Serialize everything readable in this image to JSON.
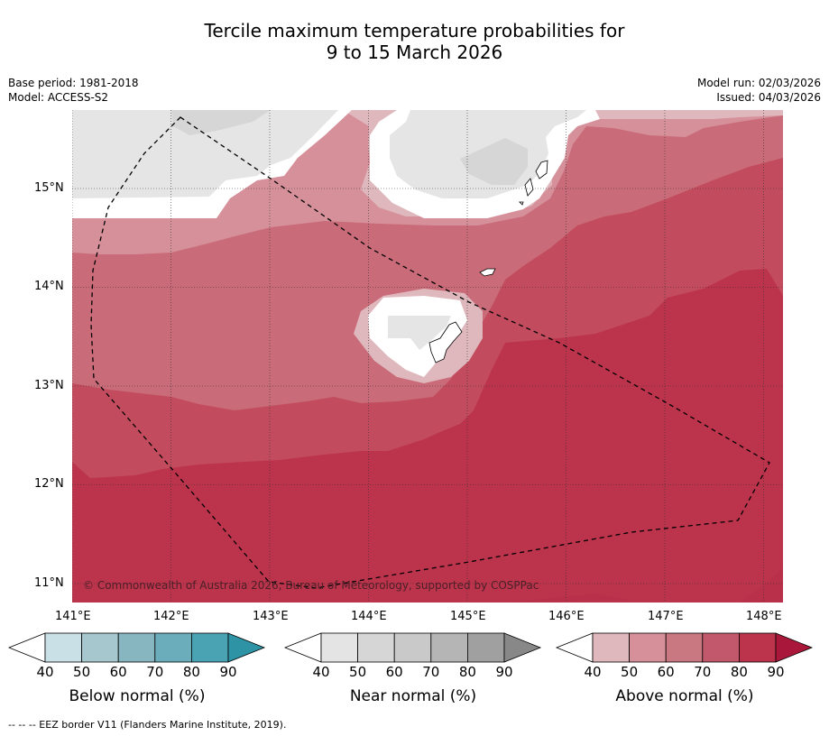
{
  "header": {
    "title_line1": "Tercile maximum temperature probabilities for",
    "title_line2": "9 to 15 March 2026",
    "base_period": "Base period: 1981-2018",
    "model": "Model: ACCESS-S2",
    "model_run": "Model run: 02/03/2026",
    "issued": "Issued: 04/03/2026"
  },
  "map": {
    "longitudes": [
      "141°E",
      "142°E",
      "143°E",
      "144°E",
      "145°E",
      "146°E",
      "147°E",
      "148°E"
    ],
    "latitudes": [
      "15°N",
      "14°N",
      "13°N",
      "12°N",
      "11°N"
    ],
    "copyright": "© Commonwealth of Australia 2026, Bureau of Meteorology, supported by COSPPac",
    "colors": {
      "above_40": "#dfb8bd",
      "above_50": "#d6909a",
      "above_60": "#c96b78",
      "above_70": "#c24c5d",
      "above_80": "#bb344c",
      "near_40": "#e5e5e5",
      "near_50": "#d6d6d6"
    }
  },
  "colorbars": [
    {
      "label": "Below normal (%)",
      "ticks": [
        "40",
        "50",
        "60",
        "70",
        "80",
        "90"
      ],
      "colors": [
        "#ffffff",
        "#c8e0e6",
        "#a6c7cd",
        "#88b6c0",
        "#6badba",
        "#4aa3b3",
        "#2e93a5"
      ]
    },
    {
      "label": "Near normal (%)",
      "ticks": [
        "40",
        "50",
        "60",
        "70",
        "80",
        "90"
      ],
      "colors": [
        "#ffffff",
        "#e4e4e4",
        "#d6d6d6",
        "#c9c9c9",
        "#b5b5b5",
        "#a0a0a0",
        "#888888"
      ]
    },
    {
      "label": "Above normal (%)",
      "ticks": [
        "40",
        "50",
        "60",
        "70",
        "80",
        "90"
      ],
      "colors": [
        "#ffffff",
        "#dfb8bd",
        "#d6909a",
        "#c97882",
        "#c2586b",
        "#bb344c",
        "#a9183a"
      ]
    }
  ],
  "footer": "--  --  -- EEZ border V11 (Flanders Marine Institute, 2019)."
}
